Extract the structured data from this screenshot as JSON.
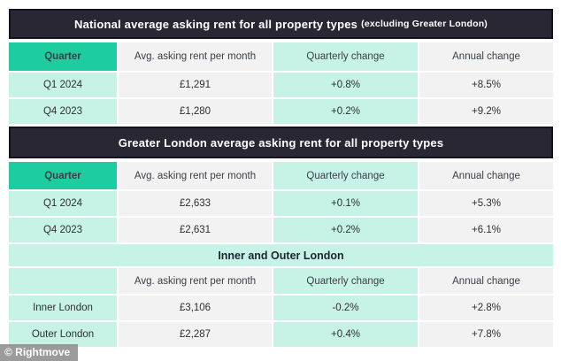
{
  "watermark": "© Rightmove",
  "colors": {
    "dark_header_bg": "#2a2735",
    "dark_header_border": "#14121d",
    "accent_teal": "#1ecd9f",
    "mint": "#c7f3e7",
    "light_gray": "#f2f2f2"
  },
  "tables": [
    {
      "title": "National average asking rent for all property types",
      "title_note": "(excluding Greater London)",
      "columns": [
        "Quarter",
        "Avg. asking rent per month",
        "Quarterly change",
        "Annual change"
      ],
      "rows": [
        [
          "Q1 2024",
          "£1,291",
          "+0.8%",
          "+8.5%"
        ],
        [
          "Q4 2023",
          "£1,280",
          "+0.2%",
          "+9.2%"
        ]
      ]
    },
    {
      "title": "Greater London average asking rent for all property types",
      "columns": [
        "Quarter",
        "Avg. asking rent per month",
        "Quarterly change",
        "Annual change"
      ],
      "rows": [
        [
          "Q1 2024",
          "£2,633",
          "+0.1%",
          "+5.3%"
        ],
        [
          "Q4 2023",
          "£2,631",
          "+0.2%",
          "+6.1%"
        ]
      ]
    },
    {
      "title": "Inner and Outer London",
      "columns": [
        "",
        "Avg. asking rent per month",
        "Quarterly change",
        "Annual change"
      ],
      "rows": [
        [
          "Inner London",
          "£3,106",
          "-0.2%",
          "+2.8%"
        ],
        [
          "Outer London",
          "£2,287",
          "+0.4%",
          "+7.8%"
        ]
      ]
    }
  ]
}
